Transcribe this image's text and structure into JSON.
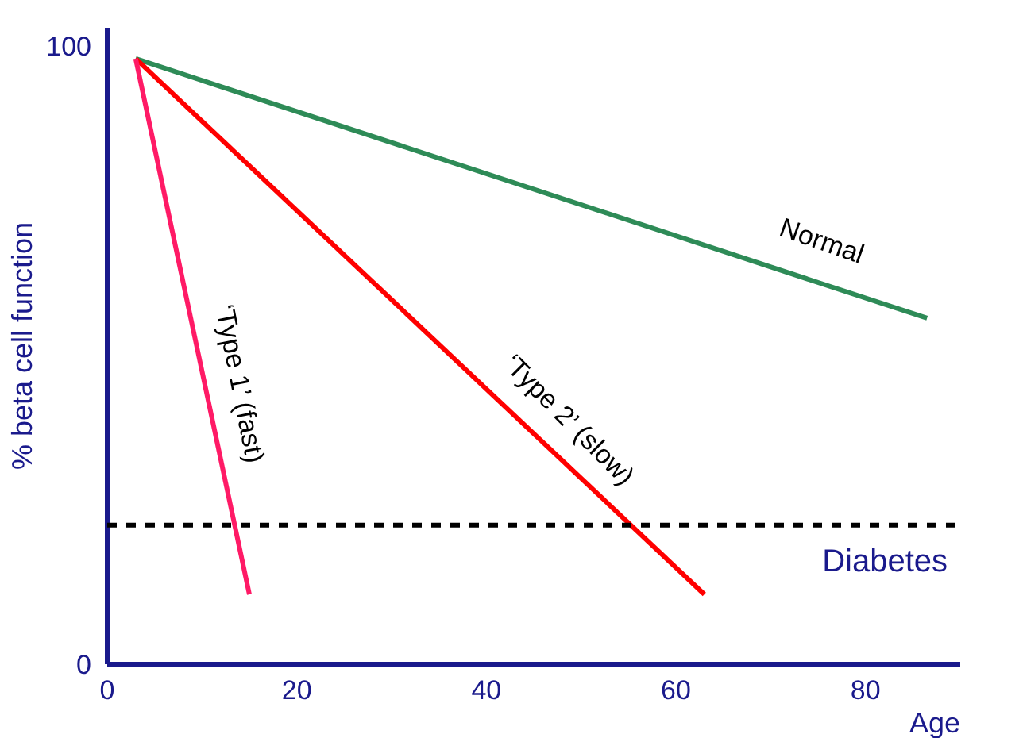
{
  "chart_data": {
    "type": "line",
    "xlabel": "Age",
    "ylabel": "% beta cell function",
    "x": [
      3,
      86.5
    ],
    "xlim": [
      0,
      90
    ],
    "ylim": [
      0,
      103
    ],
    "xticks": [
      0,
      20,
      40,
      60,
      80
    ],
    "yticks": [
      0,
      100
    ],
    "series": [
      {
        "name": "Normal",
        "color": "#2e8b57",
        "values": [
          98,
          56
        ]
      },
      {
        "name": "‘Type 2’ (slow)",
        "color": "#ff0000",
        "x": [
          3,
          63
        ],
        "values": [
          98,
          11.3
        ]
      },
      {
        "name": "‘Type 1’ (fast)",
        "color": "#ff1a66",
        "x": [
          3,
          15
        ],
        "values": [
          98,
          11.3
        ]
      }
    ],
    "ref_lines": [
      {
        "axis": "y",
        "value": 22.5,
        "label": "Diabetes",
        "color": "#000000",
        "line_style": "dashed"
      }
    ],
    "grid": false,
    "marker": "none",
    "line_style": "solid"
  }
}
